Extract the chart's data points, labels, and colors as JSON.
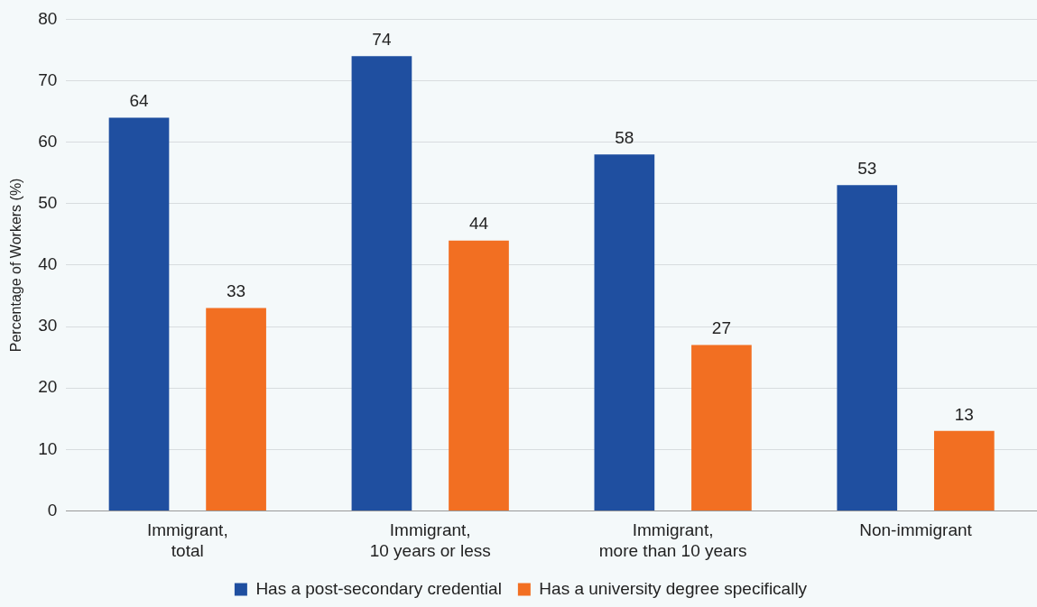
{
  "chart_data": {
    "type": "bar",
    "ylabel": "Percentage of Workers (%)",
    "categories": [
      "Immigrant, total",
      "Immigrant, 10 years or less",
      "Immigrant, more than 10 years",
      "Non-immigrant"
    ],
    "series": [
      {
        "name": "Has a post-secondary credential",
        "color": "#1f4fa0",
        "values": [
          64,
          74,
          58,
          53
        ]
      },
      {
        "name": "Has a university degree specifically",
        "color": "#f26f22",
        "values": [
          33,
          44,
          27,
          13
        ]
      }
    ],
    "ylim": [
      0,
      80
    ],
    "yticks": [
      0,
      10,
      20,
      30,
      40,
      50,
      60,
      70,
      80
    ],
    "grid": "y",
    "legend": "bottom",
    "data_labels": true
  }
}
